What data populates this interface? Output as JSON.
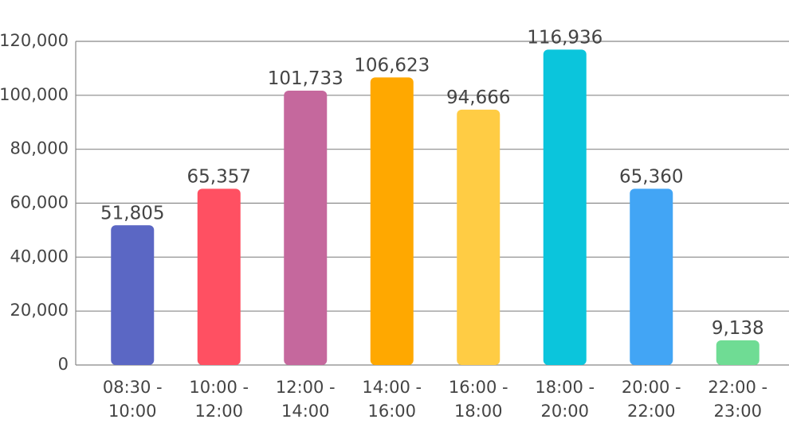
{
  "chart_data": {
    "type": "bar",
    "categories": [
      "08:30 - 10:00",
      "10:00 - 12:00",
      "12:00 - 14:00",
      "14:00 - 16:00",
      "16:00 - 18:00",
      "18:00 - 20:00",
      "20:00 - 22:00",
      "22:00 - 23:00"
    ],
    "values": [
      51805,
      65357,
      101733,
      106623,
      94666,
      116936,
      65360,
      9138
    ],
    "value_labels": [
      "51,805",
      "65,357",
      "101,733",
      "106,623",
      "94,666",
      "116,936",
      "65,360",
      "9,138"
    ],
    "colors": [
      "#5b67c4",
      "#ff5062",
      "#c5689d",
      "#ffa800",
      "#ffcc44",
      "#0bc5dc",
      "#42a5f5",
      "#6fdc94"
    ],
    "ylim": [
      0,
      120000
    ],
    "yticks": [
      0,
      {
        "value": 20000,
        "label": "20,000"
      },
      {
        "value": 40000,
        "label": "40,000"
      },
      {
        "value": 60000,
        "label": "60,000"
      },
      {
        "value": 80000,
        "label": "80,000"
      },
      {
        "value": 100000,
        "label": "100,000"
      },
      {
        "value": 120000,
        "label": "120,000"
      }
    ],
    "grid": true
  }
}
